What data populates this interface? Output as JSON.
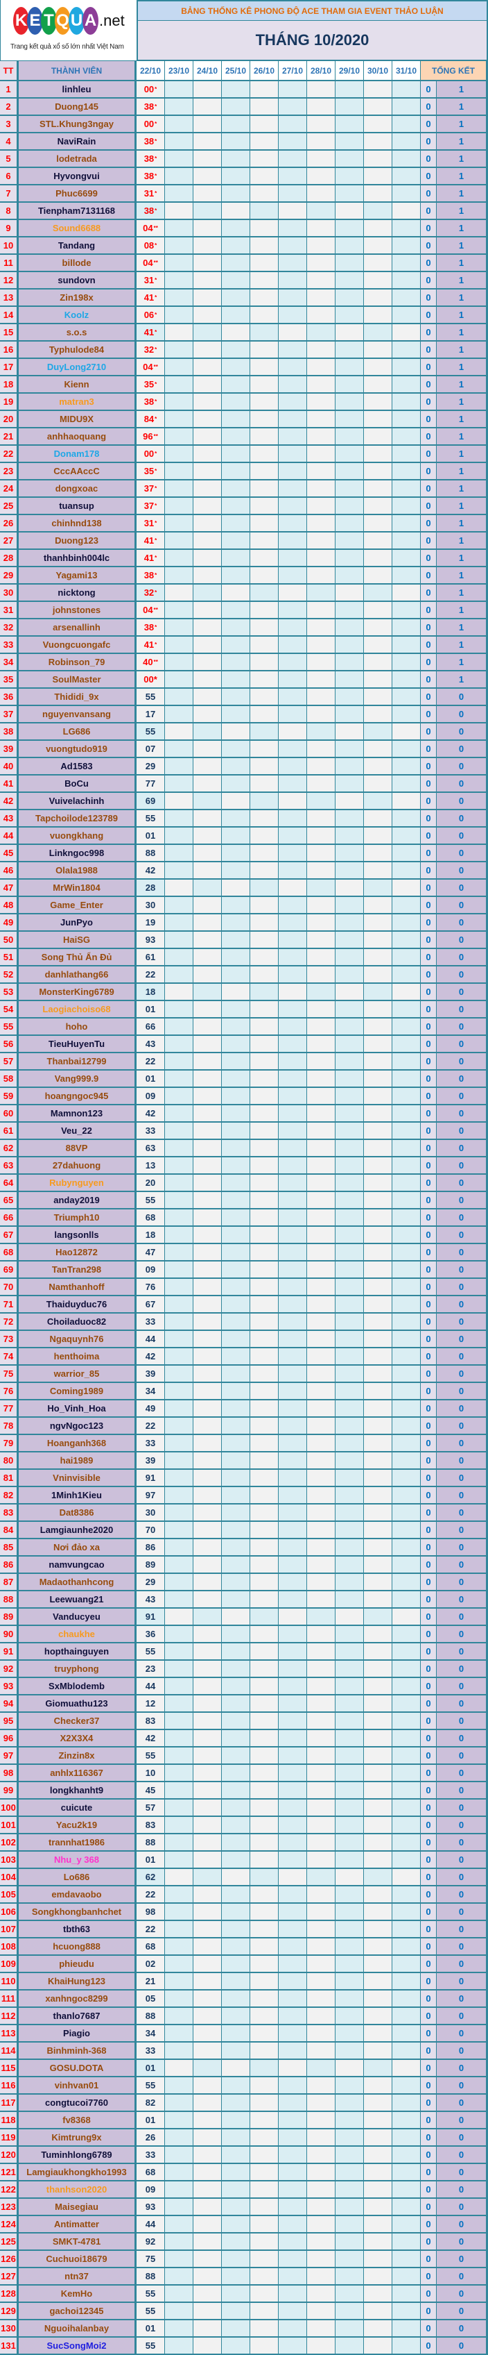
{
  "logo": {
    "letters": [
      "K",
      "E",
      "T",
      "Q",
      "U",
      "A"
    ],
    "letter_colors": [
      "#e8242b",
      "#2e5fb0",
      "#12a04b",
      "#f59a1f",
      "#20a8e0",
      "#8c3d97"
    ],
    "suffix": ".net",
    "tagline": "Trang kết quả xổ số lớn nhất Việt Nam"
  },
  "header": {
    "title": "BẢNG THỐNG KÊ PHONG ĐỘ ACE THAM GIA EVENT THẢO LUẬN",
    "month": "THÁNG 10/2020"
  },
  "columns": {
    "tt": "TT",
    "member": "THÀNH VIÊN",
    "days": [
      "22/10",
      "23/10",
      "24/10",
      "25/10",
      "26/10",
      "27/10",
      "28/10",
      "29/10",
      "30/10",
      "31/10"
    ],
    "summary": "TỔNG KẾT"
  },
  "name_colors": {
    "k": "#10103a",
    "b": "#974c0e",
    "o": "#f79a1e",
    "l": "#1ea7e6",
    "p": "#ff33cc",
    "u": "#1f1fe0"
  },
  "rows": [
    {
      "tt": "1",
      "name": "linhleu",
      "c": "k",
      "v": "00",
      "m": "*",
      "a": "0",
      "s": "1"
    },
    {
      "tt": "2",
      "name": "Duong145",
      "c": "b",
      "v": "38",
      "m": "*",
      "a": "0",
      "s": "1"
    },
    {
      "tt": "3",
      "name": "STL.Khung3ngay",
      "c": "b",
      "v": "00",
      "m": "*",
      "a": "0",
      "s": "1"
    },
    {
      "tt": "4",
      "name": "NaviRain",
      "c": "k",
      "v": "38",
      "m": "*",
      "a": "0",
      "s": "1"
    },
    {
      "tt": "5",
      "name": "lodetrada",
      "c": "b",
      "v": "38",
      "m": "*",
      "a": "0",
      "s": "1"
    },
    {
      "tt": "6",
      "name": "Hyvongvui",
      "c": "k",
      "v": "38",
      "m": "*",
      "a": "0",
      "s": "1"
    },
    {
      "tt": "7",
      "name": "Phuc6699",
      "c": "b",
      "v": "31",
      "m": "*",
      "a": "0",
      "s": "1"
    },
    {
      "tt": "8",
      "name": "Tienpham7131168",
      "c": "k",
      "v": "38",
      "m": "*",
      "a": "0",
      "s": "1"
    },
    {
      "tt": "9",
      "name": "Sound6688",
      "c": "o",
      "v": "04",
      "m": "**",
      "a": "0",
      "s": "1"
    },
    {
      "tt": "10",
      "name": "Tandang",
      "c": "k",
      "v": "08",
      "m": "*",
      "a": "0",
      "s": "1"
    },
    {
      "tt": "11",
      "name": "billode",
      "c": "b",
      "v": "04",
      "m": "**",
      "a": "0",
      "s": "1"
    },
    {
      "tt": "12",
      "name": "sundovn",
      "c": "k",
      "v": "31",
      "m": "*",
      "a": "0",
      "s": "1"
    },
    {
      "tt": "13",
      "name": "Zin198x",
      "c": "b",
      "v": "41",
      "m": "*",
      "a": "0",
      "s": "1"
    },
    {
      "tt": "14",
      "name": "Koolz",
      "c": "l",
      "v": "06",
      "m": "*",
      "a": "0",
      "s": "1"
    },
    {
      "tt": "15",
      "name": "s.o.s",
      "c": "b",
      "v": "41",
      "m": "*",
      "a": "0",
      "s": "1"
    },
    {
      "tt": "16",
      "name": "Typhulode84",
      "c": "b",
      "v": "32",
      "m": "*",
      "a": "0",
      "s": "1"
    },
    {
      "tt": "17",
      "name": "DuyLong2710",
      "c": "l",
      "v": "04",
      "m": "**",
      "a": "0",
      "s": "1"
    },
    {
      "tt": "18",
      "name": "Kienn",
      "c": "b",
      "v": "35",
      "m": "*",
      "a": "0",
      "s": "1"
    },
    {
      "tt": "19",
      "name": "matran3",
      "c": "o",
      "v": "38",
      "m": "*",
      "a": "0",
      "s": "1"
    },
    {
      "tt": "20",
      "name": "MIDU9X",
      "c": "b",
      "v": "84",
      "m": "*",
      "a": "0",
      "s": "1"
    },
    {
      "tt": "21",
      "name": "anhhaoquang",
      "c": "b",
      "v": "96",
      "m": "**",
      "a": "0",
      "s": "1"
    },
    {
      "tt": "22",
      "name": "Donam178",
      "c": "l",
      "v": "00",
      "m": "*",
      "a": "0",
      "s": "1"
    },
    {
      "tt": "23",
      "name": "CccAAccC",
      "c": "b",
      "v": "35",
      "m": "*",
      "a": "0",
      "s": "1"
    },
    {
      "tt": "24",
      "name": "dongxoac",
      "c": "b",
      "v": "37",
      "m": "*",
      "a": "0",
      "s": "1"
    },
    {
      "tt": "25",
      "name": "tuansup",
      "c": "k",
      "v": "37",
      "m": "*",
      "a": "0",
      "s": "1"
    },
    {
      "tt": "26",
      "name": "chinhnd138",
      "c": "b",
      "v": "31",
      "m": "*",
      "a": "0",
      "s": "1"
    },
    {
      "tt": "27",
      "name": "Duong123",
      "c": "b",
      "v": "41",
      "m": "*",
      "a": "0",
      "s": "1"
    },
    {
      "tt": "28",
      "name": "thanhbinh004lc",
      "c": "k",
      "v": "41",
      "m": "*",
      "a": "0",
      "s": "1"
    },
    {
      "tt": "29",
      "name": "Yagami13",
      "c": "b",
      "v": "38",
      "m": "*",
      "a": "0",
      "s": "1"
    },
    {
      "tt": "30",
      "name": "nicktong",
      "c": "k",
      "v": "32",
      "m": "*",
      "a": "0",
      "s": "1"
    },
    {
      "tt": "31",
      "name": "johnstones",
      "c": "b",
      "v": "04",
      "m": "**",
      "a": "0",
      "s": "1"
    },
    {
      "tt": "32",
      "name": "arsenallinh",
      "c": "b",
      "v": "38",
      "m": "*",
      "a": "0",
      "s": "1"
    },
    {
      "tt": "33",
      "name": "Vuongcuongafc",
      "c": "b",
      "v": "41",
      "m": "*",
      "a": "0",
      "s": "1"
    },
    {
      "tt": "34",
      "name": "Robinson_79",
      "c": "b",
      "v": "40",
      "m": "**",
      "a": "0",
      "s": "1"
    },
    {
      "tt": "35",
      "name": "SoulMaster",
      "c": "b",
      "v": "00*",
      "m": "",
      "a": "0",
      "s": "1"
    },
    {
      "tt": "36",
      "name": "Thididi_9x",
      "c": "b",
      "v": "55",
      "a": "0",
      "s": "0"
    },
    {
      "tt": "37",
      "name": "nguyenvansang",
      "c": "b",
      "v": "17",
      "a": "0",
      "s": "0"
    },
    {
      "tt": "38",
      "name": "LG686",
      "c": "b",
      "v": "55",
      "a": "0",
      "s": "0"
    },
    {
      "tt": "39",
      "name": "vuongtudo919",
      "c": "b",
      "v": "07",
      "a": "0",
      "s": "0"
    },
    {
      "tt": "40",
      "name": "Ad1583",
      "c": "k",
      "v": "29",
      "a": "0",
      "s": "0"
    },
    {
      "tt": "41",
      "name": "BoCu",
      "c": "k",
      "v": "77",
      "a": "0",
      "s": "0"
    },
    {
      "tt": "42",
      "name": "Vuivelachinh",
      "c": "k",
      "v": "69",
      "a": "0",
      "s": "0"
    },
    {
      "tt": "43",
      "name": "Tapchoilode123789",
      "c": "b",
      "v": "55",
      "a": "0",
      "s": "0"
    },
    {
      "tt": "44",
      "name": "vuongkhang",
      "c": "b",
      "v": "01",
      "a": "0",
      "s": "0"
    },
    {
      "tt": "45",
      "name": "Linkngoc998",
      "c": "k",
      "v": "88",
      "a": "0",
      "s": "0"
    },
    {
      "tt": "46",
      "name": "Olala1988",
      "c": "b",
      "v": "42",
      "a": "0",
      "s": "0"
    },
    {
      "tt": "47",
      "name": "MrWin1804",
      "c": "b",
      "v": "28",
      "a": "0",
      "s": "0"
    },
    {
      "tt": "48",
      "name": "Game_Enter",
      "c": "b",
      "v": "30",
      "a": "0",
      "s": "0"
    },
    {
      "tt": "49",
      "name": "JunPyo",
      "c": "k",
      "v": "19",
      "a": "0",
      "s": "0"
    },
    {
      "tt": "50",
      "name": "HaiSG",
      "c": "b",
      "v": "93",
      "a": "0",
      "s": "0"
    },
    {
      "tt": "51",
      "name": "Song Thủ Ẩn Đủ",
      "c": "b",
      "v": "61",
      "a": "0",
      "s": "0"
    },
    {
      "tt": "52",
      "name": "danhlathang66",
      "c": "b",
      "v": "22",
      "a": "0",
      "s": "0"
    },
    {
      "tt": "53",
      "name": "MonsterKing6789",
      "c": "b",
      "v": "18",
      "a": "0",
      "s": "0"
    },
    {
      "tt": "54",
      "name": "Laogiachoiso68",
      "c": "o",
      "v": "01",
      "a": "0",
      "s": "0"
    },
    {
      "tt": "55",
      "name": "hoho",
      "c": "b",
      "v": "66",
      "a": "0",
      "s": "0"
    },
    {
      "tt": "56",
      "name": "TieuHuyenTu",
      "c": "k",
      "v": "43",
      "a": "0",
      "s": "0"
    },
    {
      "tt": "57",
      "name": "Thanbai12799",
      "c": "b",
      "v": "22",
      "a": "0",
      "s": "0"
    },
    {
      "tt": "58",
      "name": "Vang999.9",
      "c": "b",
      "v": "01",
      "a": "0",
      "s": "0"
    },
    {
      "tt": "59",
      "name": "hoangngoc945",
      "c": "b",
      "v": "09",
      "a": "0",
      "s": "0"
    },
    {
      "tt": "60",
      "name": "Mamnon123",
      "c": "k",
      "v": "42",
      "a": "0",
      "s": "0"
    },
    {
      "tt": "61",
      "name": "Veu_22",
      "c": "k",
      "v": "33",
      "a": "0",
      "s": "0"
    },
    {
      "tt": "62",
      "name": "88VP",
      "c": "b",
      "v": "63",
      "a": "0",
      "s": "0"
    },
    {
      "tt": "63",
      "name": "27dahuong",
      "c": "b",
      "v": "13",
      "a": "0",
      "s": "0"
    },
    {
      "tt": "64",
      "name": "Rubynguyen",
      "c": "o",
      "v": "20",
      "a": "0",
      "s": "0"
    },
    {
      "tt": "65",
      "name": "anday2019",
      "c": "k",
      "v": "55",
      "a": "0",
      "s": "0"
    },
    {
      "tt": "66",
      "name": "Triumph10",
      "c": "b",
      "v": "68",
      "a": "0",
      "s": "0"
    },
    {
      "tt": "67",
      "name": "langsonlls",
      "c": "k",
      "v": "18",
      "a": "0",
      "s": "0"
    },
    {
      "tt": "68",
      "name": "Hao12872",
      "c": "b",
      "v": "47",
      "a": "0",
      "s": "0"
    },
    {
      "tt": "69",
      "name": "TanTran298",
      "c": "b",
      "v": "09",
      "a": "0",
      "s": "0"
    },
    {
      "tt": "70",
      "name": "Namthanhoff",
      "c": "b",
      "v": "76",
      "a": "0",
      "s": "0"
    },
    {
      "tt": "71",
      "name": "Thaiduyduc76",
      "c": "k",
      "v": "67",
      "a": "0",
      "s": "0"
    },
    {
      "tt": "72",
      "name": "Choiladuoc82",
      "c": "k",
      "v": "33",
      "a": "0",
      "s": "0"
    },
    {
      "tt": "73",
      "name": "Ngaquynh76",
      "c": "b",
      "v": "44",
      "a": "0",
      "s": "0"
    },
    {
      "tt": "74",
      "name": "henthoima",
      "c": "b",
      "v": "42",
      "a": "0",
      "s": "0"
    },
    {
      "tt": "75",
      "name": "warrior_85",
      "c": "b",
      "v": "39",
      "a": "0",
      "s": "0"
    },
    {
      "tt": "76",
      "name": "Coming1989",
      "c": "b",
      "v": "34",
      "a": "0",
      "s": "0"
    },
    {
      "tt": "77",
      "name": "Ho_Vinh_Hoa",
      "c": "k",
      "v": "49",
      "a": "0",
      "s": "0"
    },
    {
      "tt": "78",
      "name": "ngvNgoc123",
      "c": "k",
      "v": "22",
      "a": "0",
      "s": "0"
    },
    {
      "tt": "79",
      "name": "Hoanganh368",
      "c": "b",
      "v": "33",
      "a": "0",
      "s": "0"
    },
    {
      "tt": "80",
      "name": "hai1989",
      "c": "b",
      "v": "39",
      "a": "0",
      "s": "0"
    },
    {
      "tt": "81",
      "name": "Vninvisible",
      "c": "b",
      "v": "91",
      "a": "0",
      "s": "0"
    },
    {
      "tt": "82",
      "name": "1Minh1Kieu",
      "c": "k",
      "v": "97",
      "a": "0",
      "s": "0"
    },
    {
      "tt": "83",
      "name": "Dat8386",
      "c": "b",
      "v": "30",
      "a": "0",
      "s": "0"
    },
    {
      "tt": "84",
      "name": "Lamgiaunhe2020",
      "c": "k",
      "v": "70",
      "a": "0",
      "s": "0"
    },
    {
      "tt": "85",
      "name": "Nơi đảo xa",
      "c": "b",
      "v": "86",
      "a": "0",
      "s": "0"
    },
    {
      "tt": "86",
      "name": "namvungcao",
      "c": "k",
      "v": "89",
      "a": "0",
      "s": "0"
    },
    {
      "tt": "87",
      "name": "Madaothanhcong",
      "c": "b",
      "v": "29",
      "a": "0",
      "s": "0"
    },
    {
      "tt": "88",
      "name": "Leewuang21",
      "c": "k",
      "v": "43",
      "a": "0",
      "s": "0"
    },
    {
      "tt": "89",
      "name": "Vanducyeu",
      "c": "k",
      "v": "91",
      "a": "0",
      "s": "0"
    },
    {
      "tt": "90",
      "name": "chaukhe",
      "c": "o",
      "v": "36",
      "a": "0",
      "s": "0"
    },
    {
      "tt": "91",
      "name": "hopthainguyen",
      "c": "k",
      "v": "55",
      "a": "0",
      "s": "0"
    },
    {
      "tt": "92",
      "name": "truyphong",
      "c": "b",
      "v": "23",
      "a": "0",
      "s": "0"
    },
    {
      "tt": "93",
      "name": "SxMblodemb",
      "c": "k",
      "v": "44",
      "a": "0",
      "s": "0"
    },
    {
      "tt": "94",
      "name": "Giomuathu123",
      "c": "k",
      "v": "12",
      "a": "0",
      "s": "0"
    },
    {
      "tt": "95",
      "name": "Checker37",
      "c": "b",
      "v": "83",
      "a": "0",
      "s": "0"
    },
    {
      "tt": "96",
      "name": "X2X3X4",
      "c": "b",
      "v": "42",
      "a": "0",
      "s": "0"
    },
    {
      "tt": "97",
      "name": "Zinzin8x",
      "c": "b",
      "v": "55",
      "a": "0",
      "s": "0"
    },
    {
      "tt": "98",
      "name": "anhlx116367",
      "c": "b",
      "v": "10",
      "a": "0",
      "s": "0"
    },
    {
      "tt": "99",
      "name": "longkhanht9",
      "c": "k",
      "v": "45",
      "a": "0",
      "s": "0"
    },
    {
      "tt": "100",
      "name": "cuicute",
      "c": "k",
      "v": "57",
      "a": "0",
      "s": "0"
    },
    {
      "tt": "101",
      "name": "Yacu2k19",
      "c": "b",
      "v": "83",
      "a": "0",
      "s": "0"
    },
    {
      "tt": "102",
      "name": "trannhat1986",
      "c": "b",
      "v": "88",
      "a": "0",
      "s": "0"
    },
    {
      "tt": "103",
      "name": "Nhu_y 368",
      "c": "p",
      "v": "01",
      "a": "0",
      "s": "0"
    },
    {
      "tt": "104",
      "name": "Lo686",
      "c": "b",
      "v": "62",
      "a": "0",
      "s": "0"
    },
    {
      "tt": "105",
      "name": "emdavaobo",
      "c": "b",
      "v": "22",
      "a": "0",
      "s": "0"
    },
    {
      "tt": "106",
      "name": "Songkhongbanhchet",
      "c": "b",
      "v": "98",
      "a": "0",
      "s": "0"
    },
    {
      "tt": "107",
      "name": "tbth63",
      "c": "k",
      "v": "22",
      "a": "0",
      "s": "0"
    },
    {
      "tt": "108",
      "name": "hcuong888",
      "c": "b",
      "v": "68",
      "a": "0",
      "s": "0"
    },
    {
      "tt": "109",
      "name": "phieudu",
      "c": "b",
      "v": "02",
      "a": "0",
      "s": "0"
    },
    {
      "tt": "110",
      "name": "KhaiHung123",
      "c": "b",
      "v": "21",
      "a": "0",
      "s": "0"
    },
    {
      "tt": "111",
      "name": "xanhngoc8299",
      "c": "b",
      "v": "05",
      "a": "0",
      "s": "0"
    },
    {
      "tt": "112",
      "name": "thanlo7687",
      "c": "k",
      "v": "88",
      "a": "0",
      "s": "0"
    },
    {
      "tt": "113",
      "name": "Piagio",
      "c": "k",
      "v": "34",
      "a": "0",
      "s": "0"
    },
    {
      "tt": "114",
      "name": "Binhminh-368",
      "c": "b",
      "v": "33",
      "a": "0",
      "s": "0"
    },
    {
      "tt": "115",
      "name": "GOSU.DOTA",
      "c": "b",
      "v": "01",
      "a": "0",
      "s": "0"
    },
    {
      "tt": "116",
      "name": "vinhvan01",
      "c": "b",
      "v": "55",
      "a": "0",
      "s": "0"
    },
    {
      "tt": "117",
      "name": "congtucoi7760",
      "c": "k",
      "v": "82",
      "a": "0",
      "s": "0"
    },
    {
      "tt": "118",
      "name": "fv8368",
      "c": "b",
      "v": "01",
      "a": "0",
      "s": "0"
    },
    {
      "tt": "119",
      "name": "Kimtrung9x",
      "c": "b",
      "v": "26",
      "a": "0",
      "s": "0"
    },
    {
      "tt": "120",
      "name": "Tuminhlong6789",
      "c": "k",
      "v": "33",
      "a": "0",
      "s": "0"
    },
    {
      "tt": "121",
      "name": "Lamgiaukhongkho1993",
      "c": "b",
      "v": "68",
      "a": "0",
      "s": "0"
    },
    {
      "tt": "122",
      "name": "thanhson2020",
      "c": "o",
      "v": "09",
      "a": "0",
      "s": "0"
    },
    {
      "tt": "123",
      "name": "Maisegiau",
      "c": "b",
      "v": "93",
      "a": "0",
      "s": "0"
    },
    {
      "tt": "124",
      "name": "Antimatter",
      "c": "b",
      "v": "44",
      "a": "0",
      "s": "0"
    },
    {
      "tt": "125",
      "name": "SMKT-4781",
      "c": "b",
      "v": "92",
      "a": "0",
      "s": "0"
    },
    {
      "tt": "126",
      "name": "Cuchuoi18679",
      "c": "b",
      "v": "75",
      "a": "0",
      "s": "0"
    },
    {
      "tt": "127",
      "name": "ntn37",
      "c": "b",
      "v": "88",
      "a": "0",
      "s": "0"
    },
    {
      "tt": "128",
      "name": "KemHo",
      "c": "b",
      "v": "55",
      "a": "0",
      "s": "0"
    },
    {
      "tt": "129",
      "name": "gachoi12345",
      "c": "b",
      "v": "55",
      "a": "0",
      "s": "0"
    },
    {
      "tt": "130",
      "name": "Nguoihalanbay",
      "c": "b",
      "v": "01",
      "a": "0",
      "s": "0"
    },
    {
      "tt": "131",
      "name": "SucSongMoi2",
      "c": "u",
      "v": "55",
      "a": "0",
      "s": "0"
    }
  ]
}
